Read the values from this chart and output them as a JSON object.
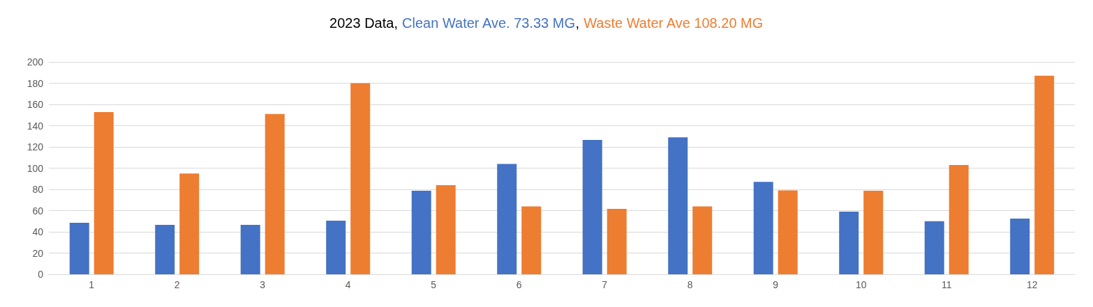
{
  "chart_data": {
    "type": "bar",
    "title": "2023 Data,",
    "categories": [
      "1",
      "2",
      "3",
      "4",
      "5",
      "6",
      "7",
      "8",
      "9",
      "10",
      "11",
      "12"
    ],
    "series": [
      {
        "name": "Clean Water Ave. 73.33 MG",
        "color": "#4472c4",
        "values": [
          48.5,
          46.6,
          46.6,
          50.5,
          78.7,
          104,
          126.6,
          129,
          87,
          59,
          50,
          52.5
        ]
      },
      {
        "name": "Waste Water Ave 108.20 MG",
        "color": "#ed7d31",
        "values": [
          152.8,
          95,
          151,
          180,
          84,
          64,
          61.6,
          64,
          79,
          78.7,
          103,
          187
        ]
      }
    ],
    "ylim": [
      0,
      200
    ],
    "yticks": [
      0,
      20,
      40,
      60,
      80,
      100,
      120,
      140,
      160,
      180,
      200
    ],
    "grid": "y",
    "legend": false,
    "annotations": [
      ","
    ]
  }
}
